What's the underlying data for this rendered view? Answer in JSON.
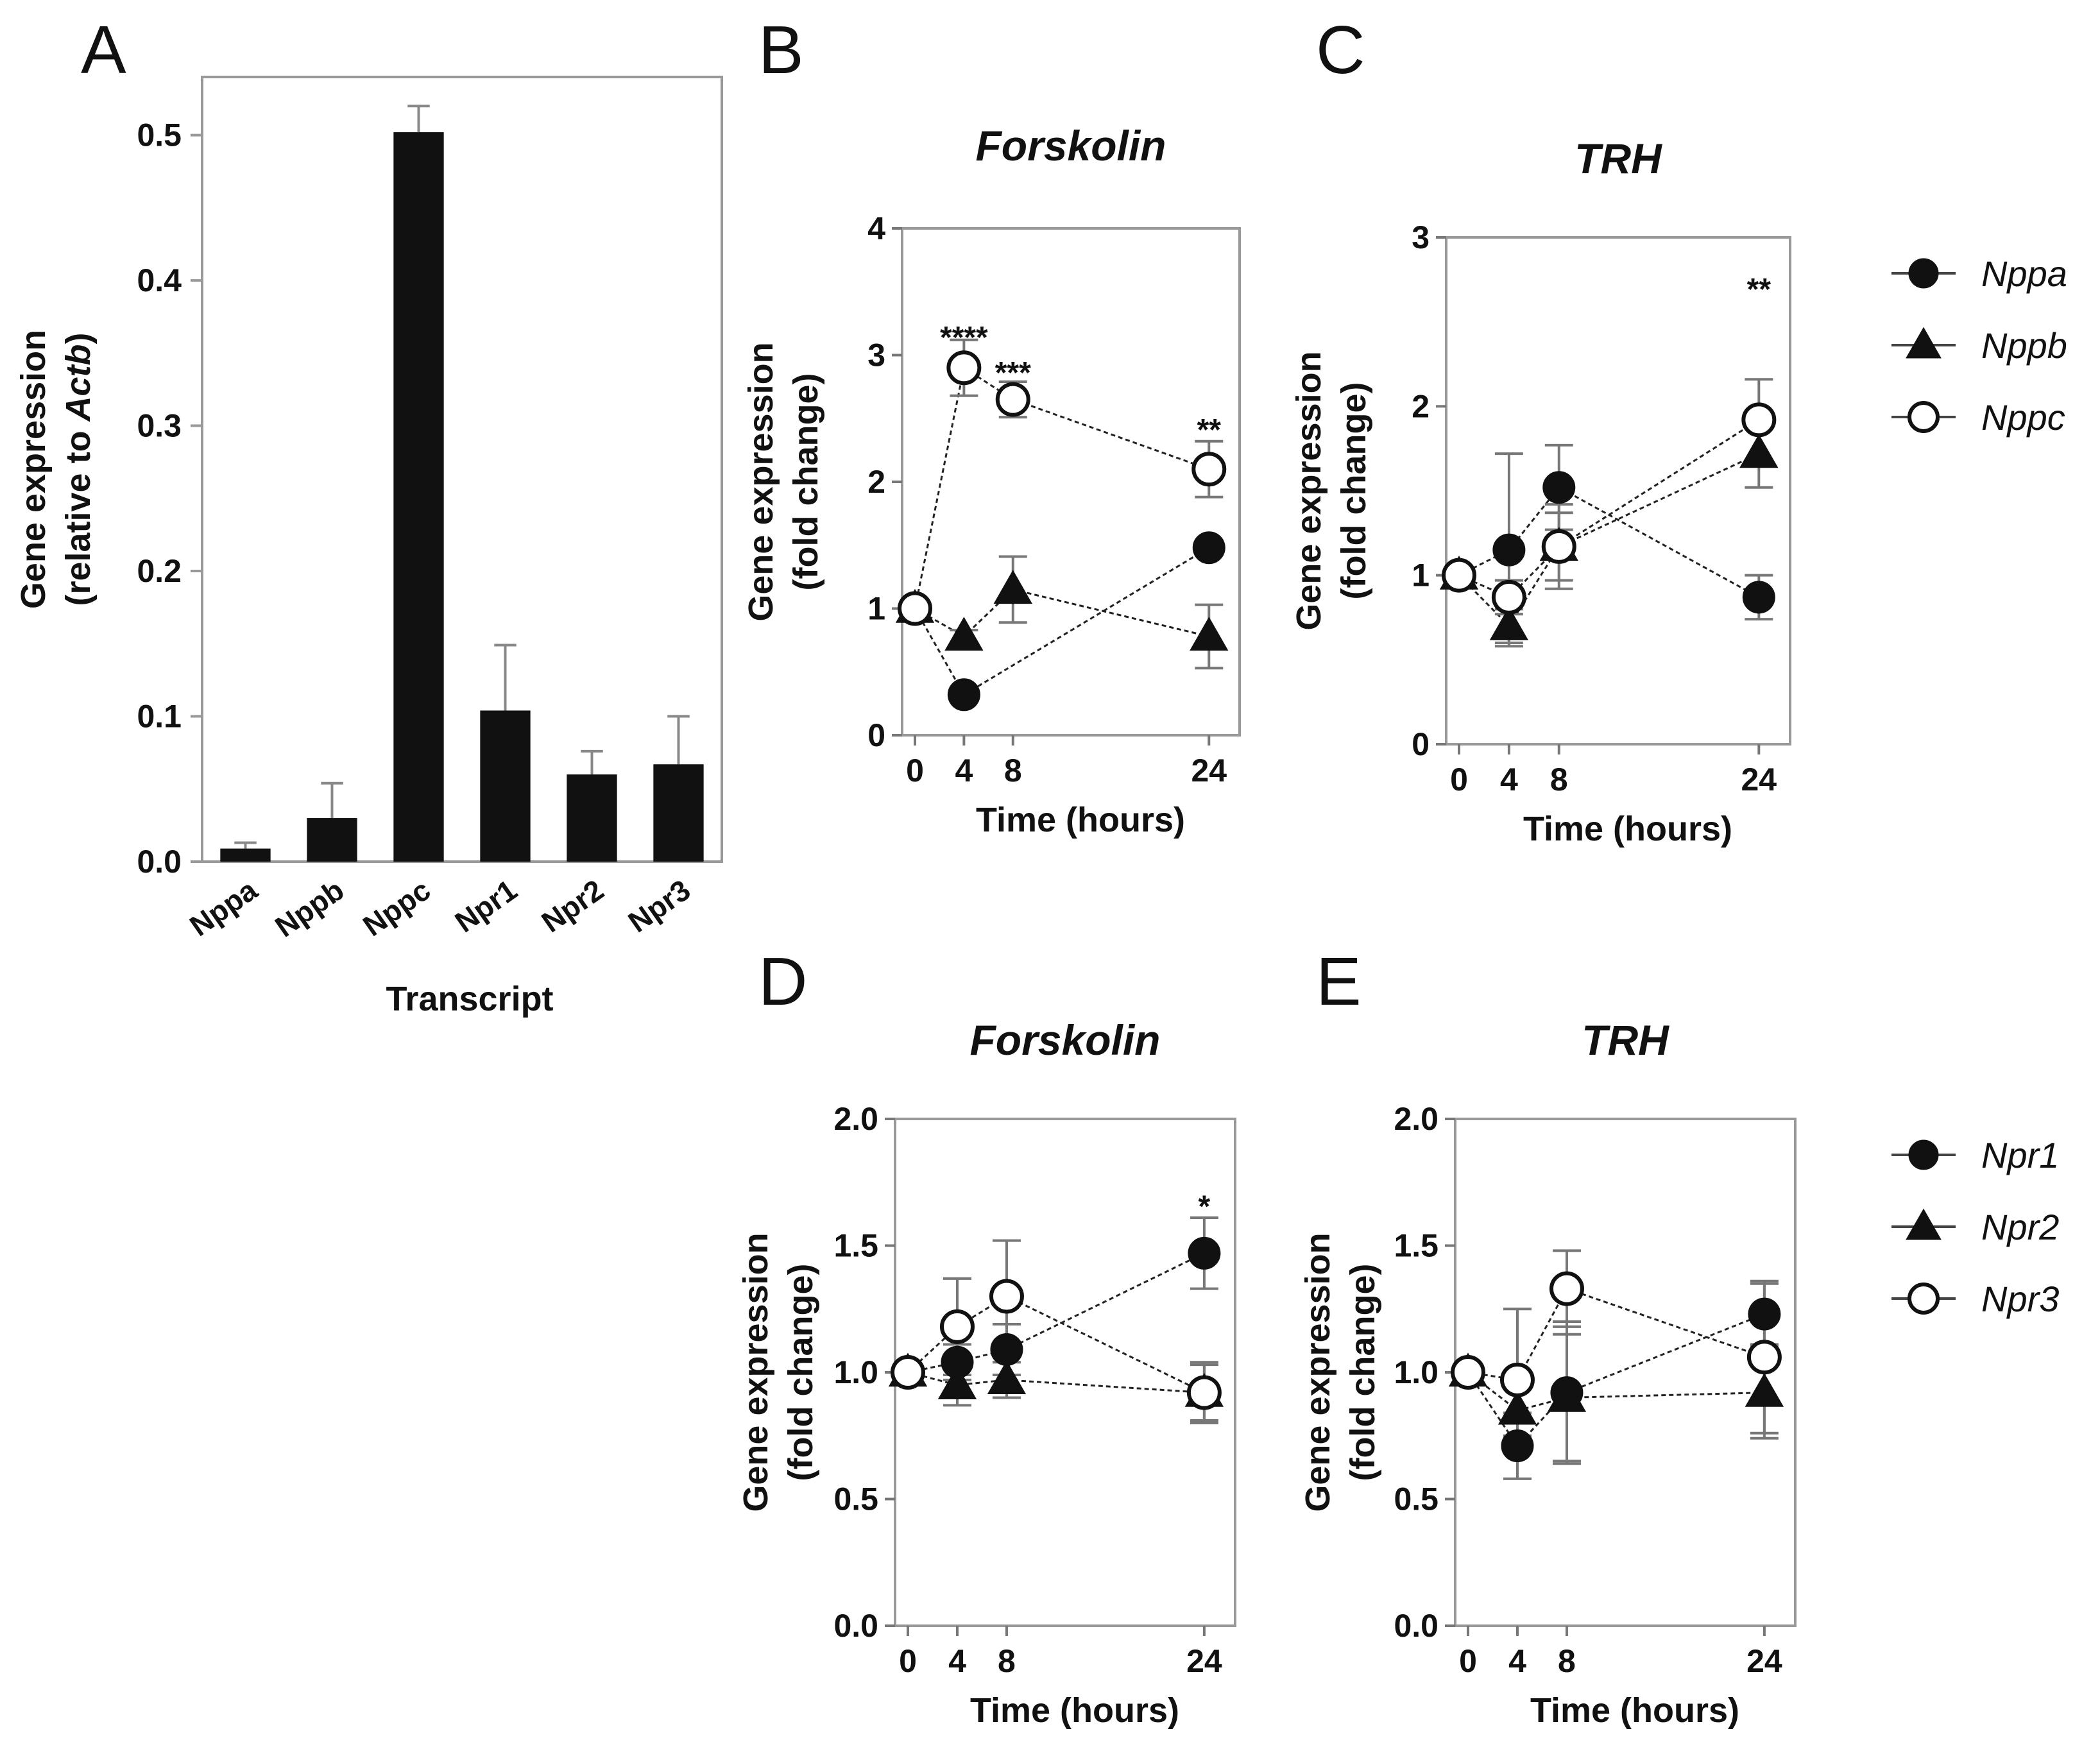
{
  "chart_data": [
    {
      "id": "A",
      "type": "bar",
      "panel_label": "A",
      "title": "",
      "xlabel": "Transcript",
      "ylabel_line1": "Gene expression",
      "ylabel_line2_prefix": "(relative to ",
      "ylabel_line2_italic": "Actb",
      "ylabel_line2_suffix": ")",
      "ylim": [
        0,
        0.54
      ],
      "yticks": [
        0.0,
        0.1,
        0.2,
        0.3,
        0.4,
        0.5
      ],
      "ytick_labels": [
        "0.0",
        "0.1",
        "0.2",
        "0.3",
        "0.4",
        "0.5"
      ],
      "categories": [
        "Nppa",
        "Nppb",
        "Nppc",
        "Npr1",
        "Npr2",
        "Npr3"
      ],
      "values": [
        0.009,
        0.03,
        0.502,
        0.104,
        0.06,
        0.067
      ],
      "errors": [
        0.004,
        0.024,
        0.018,
        0.045,
        0.016,
        0.033
      ]
    },
    {
      "id": "B",
      "type": "line",
      "panel_label": "B",
      "title": "Forskolin",
      "xlabel": "Time (hours)",
      "ylabel_line1": "Gene expression",
      "ylabel_line2": "(fold change)",
      "ylim": [
        0,
        4
      ],
      "yticks": [
        0,
        1,
        2,
        3,
        4
      ],
      "ytick_labels": [
        "0",
        "1",
        "2",
        "3",
        "4"
      ],
      "x": [
        0,
        4,
        8,
        24
      ],
      "xtick_labels": [
        "0",
        "4",
        "8",
        "24"
      ],
      "series": [
        {
          "name": "Nppa",
          "marker": "circle-filled",
          "values": [
            1.0,
            0.32,
            null,
            1.48
          ],
          "errors": [
            0,
            0.04,
            null,
            0.06
          ]
        },
        {
          "name": "Nppb",
          "marker": "triangle",
          "values": [
            1.0,
            0.78,
            1.15,
            0.78
          ],
          "errors": [
            0,
            0.05,
            0.26,
            0.25
          ]
        },
        {
          "name": "Nppc",
          "marker": "circle-open",
          "values": [
            1.0,
            2.9,
            2.65,
            2.1
          ],
          "errors": [
            0,
            0.22,
            0.14,
            0.22
          ]
        }
      ],
      "annotations": [
        {
          "x": 4,
          "y": 3.15,
          "text": "****"
        },
        {
          "x": 8,
          "y": 2.87,
          "text": "***"
        },
        {
          "x": 24,
          "y": 2.42,
          "text": "**"
        }
      ]
    },
    {
      "id": "C",
      "type": "line",
      "panel_label": "C",
      "title": "TRH",
      "xlabel": "Time (hours)",
      "ylabel_line1": "Gene expression",
      "ylabel_line2": "(fold change)",
      "ylim": [
        0,
        3
      ],
      "yticks": [
        0,
        1,
        2,
        3
      ],
      "ytick_labels": [
        "0",
        "1",
        "2",
        "3"
      ],
      "x": [
        0,
        4,
        8,
        24
      ],
      "xtick_labels": [
        "0",
        "4",
        "8",
        "24"
      ],
      "series": [
        {
          "name": "Nppa",
          "marker": "circle-filled",
          "values": [
            1.0,
            1.15,
            1.52,
            0.87
          ],
          "errors": [
            0,
            0.57,
            0.25,
            0.13
          ]
        },
        {
          "name": "Nppb",
          "marker": "triangle",
          "values": [
            1.0,
            0.7,
            1.17,
            1.72
          ],
          "errors": [
            0,
            0.1,
            0.25,
            0.2
          ]
        },
        {
          "name": "Nppc",
          "marker": "circle-open",
          "values": [
            1.0,
            0.87,
            1.17,
            1.92
          ],
          "errors": [
            0,
            0.1,
            0.2,
            0.24
          ]
        }
      ],
      "annotations": [
        {
          "x": 24,
          "y": 2.7,
          "text": "**"
        }
      ]
    },
    {
      "id": "D",
      "type": "line",
      "panel_label": "D",
      "title": "Forskolin",
      "xlabel": "Time (hours)",
      "ylabel_line1": "Gene expression",
      "ylabel_line2": "(fold change)",
      "ylim": [
        0,
        2.0
      ],
      "yticks": [
        0,
        0.5,
        1.0,
        1.5,
        2.0
      ],
      "ytick_labels": [
        "0.0",
        "0.5",
        "1.0",
        "1.5",
        "2.0"
      ],
      "x": [
        0,
        4,
        8,
        24
      ],
      "xtick_labels": [
        "0",
        "4",
        "8",
        "24"
      ],
      "series": [
        {
          "name": "Npr1",
          "marker": "circle-filled",
          "values": [
            1.0,
            1.04,
            1.09,
            1.47
          ],
          "errors": [
            0,
            0.07,
            0.1,
            0.14
          ]
        },
        {
          "name": "Npr2",
          "marker": "triangle",
          "values": [
            1.0,
            0.95,
            0.97,
            0.92
          ],
          "errors": [
            0,
            0.08,
            0.07,
            0.11
          ]
        },
        {
          "name": "Npr3",
          "marker": "circle-open",
          "values": [
            1.0,
            1.18,
            1.3,
            0.92
          ],
          "errors": [
            0,
            0.19,
            0.22,
            0.12
          ]
        }
      ],
      "annotations": [
        {
          "x": 24,
          "y": 1.66,
          "text": "*"
        }
      ]
    },
    {
      "id": "E",
      "type": "line",
      "panel_label": "E",
      "title": "TRH",
      "xlabel": "Time (hours)",
      "ylabel_line1": "Gene expression",
      "ylabel_line2": "(fold change)",
      "ylim": [
        0,
        2.0
      ],
      "yticks": [
        0,
        0.5,
        1.0,
        1.5,
        2.0
      ],
      "ytick_labels": [
        "0.0",
        "0.5",
        "1.0",
        "1.5",
        "2.0"
      ],
      "x": [
        0,
        4,
        8,
        24
      ],
      "xtick_labels": [
        "0",
        "4",
        "8",
        "24"
      ],
      "series": [
        {
          "name": "Npr1",
          "marker": "circle-filled",
          "values": [
            1.0,
            0.71,
            0.92,
            1.23
          ],
          "errors": [
            0,
            0.13,
            0.28,
            0.12
          ]
        },
        {
          "name": "Npr2",
          "marker": "triangle",
          "values": [
            1.0,
            0.85,
            0.9,
            0.92
          ],
          "errors": [
            0,
            0.1,
            0.25,
            0.18
          ]
        },
        {
          "name": "Npr3",
          "marker": "circle-open",
          "values": [
            1.0,
            0.97,
            1.33,
            1.06
          ],
          "errors": [
            0,
            0.28,
            0.15,
            0.3
          ]
        }
      ],
      "annotations": []
    }
  ],
  "legends": [
    {
      "id": "legend-top",
      "entries": [
        {
          "name": "Nppa",
          "marker": "circle-filled"
        },
        {
          "name": "Nppb",
          "marker": "triangle"
        },
        {
          "name": "Nppc",
          "marker": "circle-open"
        }
      ]
    },
    {
      "id": "legend-bottom",
      "entries": [
        {
          "name": "Npr1",
          "marker": "circle-filled"
        },
        {
          "name": "Npr2",
          "marker": "triangle"
        },
        {
          "name": "Npr3",
          "marker": "circle-open"
        }
      ]
    }
  ]
}
